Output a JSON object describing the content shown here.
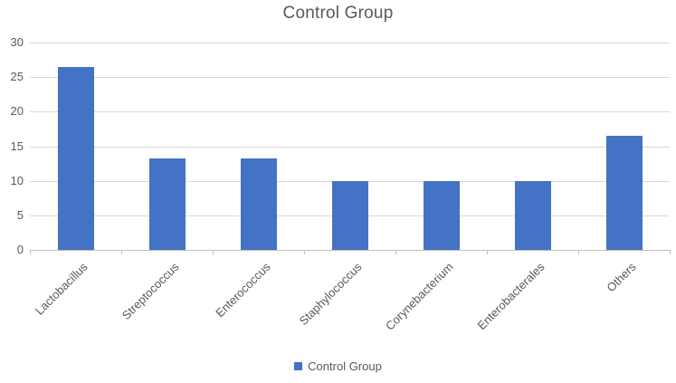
{
  "chart_data": {
    "type": "bar",
    "title": "Control Group",
    "categories": [
      "Lactobacillus",
      "Streptococcus",
      "Enterococcus",
      "Staphylococcus",
      "Corynebacterium",
      "Enterobacterales",
      "Others"
    ],
    "values": [
      26.5,
      13.2,
      13.2,
      9.9,
      9.9,
      9.9,
      16.5
    ],
    "xlabel": "",
    "ylabel": "",
    "ylim": [
      0,
      30
    ],
    "ytick_step": 5,
    "ytick_labels": [
      "0",
      "5",
      "10",
      "15",
      "20",
      "25",
      "30"
    ],
    "grid": true,
    "legend": {
      "position": "bottom",
      "label": "Control Group"
    },
    "colors": {
      "bar": "#4472c4",
      "gridline": "#d9d9d9",
      "axis_line": "#bfbfbf",
      "text": "#595959"
    }
  }
}
